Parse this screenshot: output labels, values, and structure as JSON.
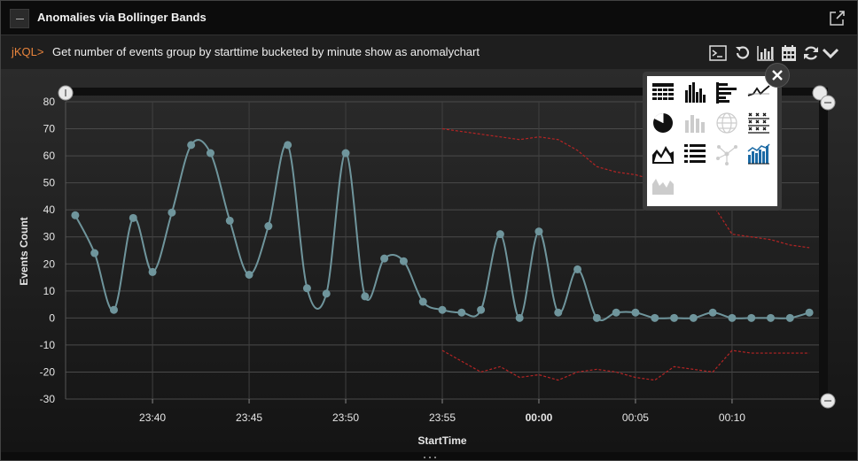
{
  "panel": {
    "title": "Anomalies via Bollinger Bands",
    "popout_icon": "popout-icon",
    "collapse_icon": "minus-icon"
  },
  "query": {
    "prefix": "jKQL>",
    "text": "Get number of events group by starttime bucketed by minute show as anomalychart",
    "toolbar_icons": [
      "terminal-icon",
      "undo-icon",
      "bar-chart-icon",
      "calendar-icon",
      "refresh-icon",
      "chevron-down-icon"
    ]
  },
  "chart_picker": {
    "icons": [
      "table-icon",
      "column-chart-icon",
      "bar-chart-icon",
      "line-chart-icon",
      "pie-chart-icon",
      "stacked-column-icon",
      "globe-icon",
      "scatter-matrix-icon",
      "area-chart-icon",
      "list-icon",
      "network-icon",
      "anomaly-chart-icon",
      "stacked-area-icon"
    ],
    "close_icon": "close-icon"
  },
  "colors": {
    "series": "#6f959c",
    "band": "#b52424",
    "accent": "#e8843c"
  },
  "chart_data": {
    "type": "line",
    "xlabel": "StartTime",
    "ylabel": "Events Count",
    "ylim": [
      -30,
      80
    ],
    "yticks": [
      80,
      70,
      60,
      50,
      40,
      30,
      20,
      10,
      0,
      -10,
      -20,
      -30
    ],
    "xlim": [
      "23:36",
      "00:14"
    ],
    "xticks": [
      {
        "label": "23:40",
        "bold": false
      },
      {
        "label": "23:45",
        "bold": false
      },
      {
        "label": "23:50",
        "bold": false
      },
      {
        "label": "23:55",
        "bold": false
      },
      {
        "label": "00:00",
        "bold": true
      },
      {
        "label": "00:05",
        "bold": false
      },
      {
        "label": "00:10",
        "bold": false
      }
    ],
    "grid": true,
    "series": [
      {
        "name": "",
        "x": [
          "23:36",
          "23:37",
          "23:38",
          "23:39",
          "23:40",
          "23:41",
          "23:42",
          "23:43",
          "23:44",
          "23:45",
          "23:46",
          "23:47",
          "23:48",
          "23:49",
          "23:50",
          "23:51",
          "23:52",
          "23:53",
          "23:54",
          "23:55",
          "23:56",
          "23:57",
          "23:58",
          "23:59",
          "00:00",
          "00:01",
          "00:02",
          "00:03",
          "00:04",
          "00:05",
          "00:06",
          "00:07",
          "00:08",
          "00:09",
          "00:10",
          "00:11",
          "00:12",
          "00:13",
          "00:14"
        ],
        "values": [
          38,
          24,
          3,
          37,
          17,
          39,
          64,
          61,
          36,
          16,
          34,
          64,
          11,
          9,
          61,
          8,
          22,
          21,
          6,
          3,
          2,
          3,
          31,
          0,
          32,
          2,
          18,
          0,
          2,
          2,
          0,
          0,
          0,
          2,
          0,
          0,
          0,
          0,
          2
        ]
      },
      {
        "name": "",
        "x": [
          "23:55",
          "23:56",
          "23:57",
          "23:58",
          "23:59",
          "00:00",
          "00:01",
          "00:02",
          "00:03",
          "00:04",
          "00:05",
          "00:06",
          "00:07",
          "00:08",
          "00:09",
          "00:10",
          "00:11",
          "00:12",
          "00:13",
          "00:14"
        ],
        "values": [
          70,
          69,
          68,
          67,
          66,
          67,
          66,
          62,
          56,
          54,
          53,
          51,
          47,
          44,
          42,
          31,
          30,
          29,
          27,
          26
        ]
      },
      {
        "name": "",
        "x": [
          "23:55",
          "23:56",
          "23:57",
          "23:58",
          "23:59",
          "00:00",
          "00:01",
          "00:02",
          "00:03",
          "00:04",
          "00:05",
          "00:06",
          "00:07",
          "00:08",
          "00:09",
          "00:10",
          "00:11",
          "00:12",
          "00:13",
          "00:14"
        ],
        "values": [
          -12,
          -16,
          -20,
          -18,
          -22,
          -21,
          -23,
          -20,
          -19,
          -20,
          -22,
          -23,
          -18,
          -19,
          -20,
          -12,
          -13,
          -13,
          -13,
          -13
        ]
      }
    ]
  }
}
